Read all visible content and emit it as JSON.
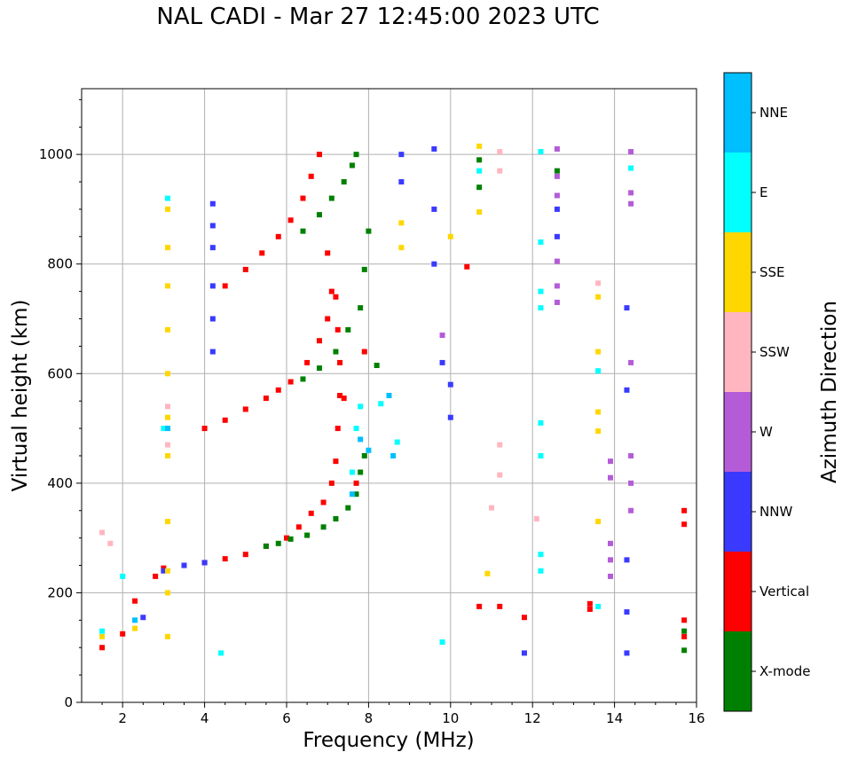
{
  "chart_data": {
    "type": "scatter",
    "title": "NAL CADI - Mar 27 12:45:00 2023 UTC",
    "xlabel": "Frequency (MHz)",
    "ylabel": "Virtual height (km)",
    "xlim": [
      1,
      16
    ],
    "ylim": [
      0,
      1120
    ],
    "x_ticks": [
      2,
      4,
      6,
      8,
      10,
      12,
      14,
      16
    ],
    "x_tick_labels": [
      "2",
      "4",
      "6",
      "8",
      "10",
      "12",
      "14",
      "16"
    ],
    "y_ticks": [
      0,
      200,
      400,
      600,
      800,
      1000
    ],
    "y_tick_labels": [
      "0",
      "200",
      "400",
      "600",
      "800",
      "1000"
    ],
    "grid": true,
    "colorbar": {
      "label": "Azimuth Direction",
      "categories": [
        "X-mode",
        "Vertical",
        "NNW",
        "W",
        "SSW",
        "SSE",
        "E",
        "NNE"
      ],
      "colors": [
        "#008000",
        "#ff0000",
        "#3a3aff",
        "#b45cd8",
        "#ffb6c1",
        "#ffd700",
        "#00ffff",
        "#00bfff"
      ]
    },
    "series": [
      {
        "name": "Vertical",
        "points": [
          [
            1.5,
            100
          ],
          [
            2.0,
            125
          ],
          [
            2.3,
            185
          ],
          [
            2.8,
            230
          ],
          [
            3.0,
            245
          ],
          [
            3.5,
            250
          ],
          [
            4.0,
            255
          ],
          [
            4.5,
            262
          ],
          [
            5.0,
            270
          ],
          [
            5.5,
            285
          ],
          [
            6.0,
            300
          ],
          [
            6.3,
            320
          ],
          [
            6.6,
            345
          ],
          [
            6.9,
            365
          ],
          [
            7.1,
            400
          ],
          [
            7.2,
            440
          ],
          [
            7.25,
            500
          ],
          [
            7.3,
            560
          ],
          [
            7.3,
            620
          ],
          [
            7.25,
            680
          ],
          [
            7.1,
            750
          ],
          [
            7.0,
            820
          ],
          [
            4.0,
            500
          ],
          [
            4.5,
            515
          ],
          [
            5.0,
            535
          ],
          [
            5.5,
            555
          ],
          [
            5.8,
            570
          ],
          [
            6.1,
            585
          ],
          [
            6.5,
            620
          ],
          [
            6.8,
            660
          ],
          [
            7.0,
            700
          ],
          [
            7.2,
            740
          ],
          [
            4.5,
            760
          ],
          [
            5.0,
            790
          ],
          [
            5.4,
            820
          ],
          [
            5.8,
            850
          ],
          [
            6.1,
            880
          ],
          [
            6.4,
            920
          ],
          [
            6.6,
            960
          ],
          [
            6.8,
            1000
          ],
          [
            7.4,
            555
          ],
          [
            7.7,
            400
          ],
          [
            7.9,
            640
          ],
          [
            10.4,
            795
          ],
          [
            10.7,
            175
          ],
          [
            11.2,
            175
          ],
          [
            11.8,
            155
          ],
          [
            13.4,
            180
          ],
          [
            13.4,
            170
          ],
          [
            15.7,
            150
          ],
          [
            15.7,
            120
          ],
          [
            15.7,
            325
          ],
          [
            15.7,
            350
          ]
        ]
      },
      {
        "name": "X-mode",
        "points": [
          [
            5.5,
            285
          ],
          [
            5.8,
            290
          ],
          [
            6.1,
            298
          ],
          [
            6.5,
            305
          ],
          [
            6.9,
            320
          ],
          [
            7.2,
            335
          ],
          [
            7.5,
            355
          ],
          [
            7.7,
            380
          ],
          [
            7.8,
            420
          ],
          [
            7.9,
            450
          ],
          [
            6.4,
            590
          ],
          [
            6.8,
            610
          ],
          [
            7.2,
            640
          ],
          [
            7.5,
            680
          ],
          [
            7.8,
            720
          ],
          [
            7.9,
            790
          ],
          [
            8.0,
            860
          ],
          [
            6.4,
            860
          ],
          [
            6.8,
            890
          ],
          [
            7.1,
            920
          ],
          [
            7.4,
            950
          ],
          [
            7.6,
            980
          ],
          [
            7.7,
            1000
          ],
          [
            8.2,
            615
          ],
          [
            10.7,
            990
          ],
          [
            10.7,
            940
          ],
          [
            12.6,
            970
          ],
          [
            15.7,
            130
          ],
          [
            15.7,
            95
          ]
        ]
      },
      {
        "name": "NNW",
        "points": [
          [
            2.5,
            155
          ],
          [
            3.0,
            240
          ],
          [
            3.5,
            250
          ],
          [
            4.0,
            255
          ],
          [
            4.2,
            640
          ],
          [
            4.2,
            700
          ],
          [
            4.2,
            760
          ],
          [
            4.2,
            830
          ],
          [
            4.2,
            870
          ],
          [
            4.2,
            910
          ],
          [
            8.8,
            1000
          ],
          [
            8.8,
            950
          ],
          [
            9.6,
            1010
          ],
          [
            9.6,
            900
          ],
          [
            9.6,
            800
          ],
          [
            9.8,
            620
          ],
          [
            10.0,
            580
          ],
          [
            10.0,
            520
          ],
          [
            12.6,
            850
          ],
          [
            12.6,
            900
          ],
          [
            14.3,
            260
          ],
          [
            14.3,
            165
          ],
          [
            14.3,
            90
          ],
          [
            14.3,
            720
          ],
          [
            14.3,
            570
          ],
          [
            11.8,
            90
          ]
        ]
      },
      {
        "name": "W",
        "points": [
          [
            12.6,
            1010
          ],
          [
            12.6,
            960
          ],
          [
            12.6,
            925
          ],
          [
            12.6,
            805
          ],
          [
            12.6,
            760
          ],
          [
            12.6,
            730
          ],
          [
            14.4,
            1005
          ],
          [
            14.4,
            930
          ],
          [
            14.4,
            910
          ],
          [
            14.4,
            620
          ],
          [
            14.4,
            450
          ],
          [
            14.4,
            400
          ],
          [
            14.4,
            350
          ],
          [
            13.9,
            440
          ],
          [
            13.9,
            410
          ],
          [
            13.9,
            290
          ],
          [
            13.9,
            260
          ],
          [
            13.9,
            230
          ],
          [
            9.8,
            670
          ]
        ]
      },
      {
        "name": "SSW",
        "points": [
          [
            1.5,
            310
          ],
          [
            1.7,
            290
          ],
          [
            3.1,
            470
          ],
          [
            3.1,
            540
          ],
          [
            11.2,
            1005
          ],
          [
            11.2,
            970
          ],
          [
            11.0,
            355
          ],
          [
            11.2,
            470
          ],
          [
            11.2,
            415
          ],
          [
            12.1,
            335
          ],
          [
            13.6,
            765
          ]
        ]
      },
      {
        "name": "SSE",
        "points": [
          [
            3.1,
            120
          ],
          [
            3.1,
            200
          ],
          [
            3.1,
            240
          ],
          [
            3.1,
            330
          ],
          [
            3.1,
            450
          ],
          [
            3.1,
            520
          ],
          [
            3.1,
            600
          ],
          [
            3.1,
            680
          ],
          [
            3.1,
            760
          ],
          [
            3.1,
            830
          ],
          [
            3.1,
            900
          ],
          [
            1.5,
            120
          ],
          [
            2.3,
            135
          ],
          [
            8.8,
            875
          ],
          [
            8.8,
            830
          ],
          [
            10.7,
            1015
          ],
          [
            10.7,
            895
          ],
          [
            10.0,
            850
          ],
          [
            10.9,
            235
          ],
          [
            13.6,
            740
          ],
          [
            13.6,
            640
          ],
          [
            13.6,
            530
          ],
          [
            13.6,
            495
          ],
          [
            13.6,
            330
          ]
        ]
      },
      {
        "name": "E",
        "points": [
          [
            1.5,
            130
          ],
          [
            2.0,
            230
          ],
          [
            3.0,
            500
          ],
          [
            3.1,
            920
          ],
          [
            7.6,
            420
          ],
          [
            7.7,
            500
          ],
          [
            7.8,
            540
          ],
          [
            8.3,
            545
          ],
          [
            8.5,
            560
          ],
          [
            8.7,
            475
          ],
          [
            10.7,
            970
          ],
          [
            12.2,
            1005
          ],
          [
            12.2,
            840
          ],
          [
            12.2,
            750
          ],
          [
            12.2,
            720
          ],
          [
            12.2,
            510
          ],
          [
            12.2,
            450
          ],
          [
            12.2,
            270
          ],
          [
            12.2,
            240
          ],
          [
            13.6,
            605
          ],
          [
            13.6,
            175
          ],
          [
            14.4,
            975
          ],
          [
            9.8,
            110
          ],
          [
            4.4,
            90
          ]
        ]
      },
      {
        "name": "NNE",
        "points": [
          [
            7.6,
            380
          ],
          [
            7.8,
            480
          ],
          [
            8.0,
            460
          ],
          [
            8.5,
            560
          ],
          [
            8.6,
            450
          ],
          [
            2.3,
            150
          ],
          [
            3.1,
            500
          ]
        ]
      }
    ]
  }
}
